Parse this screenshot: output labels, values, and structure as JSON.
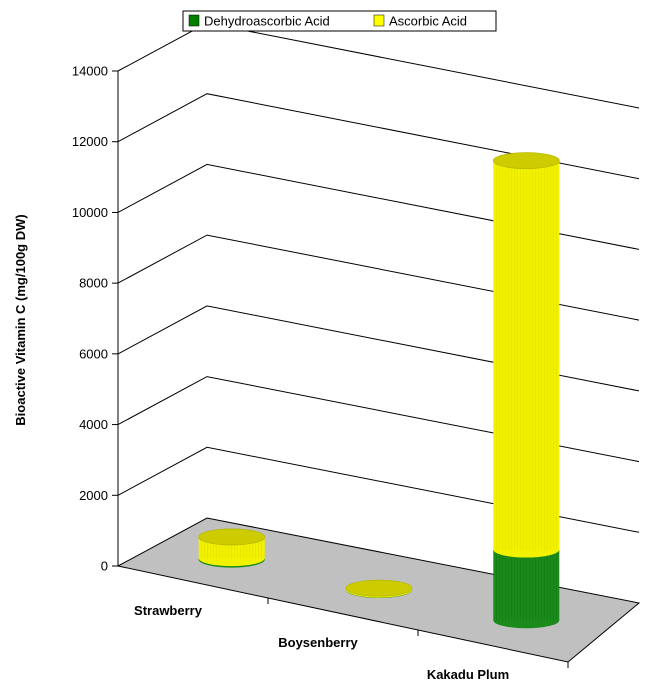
{
  "chart_data": {
    "type": "bar",
    "style": "3d-stacked-cylinder",
    "categories": [
      "Strawberry",
      "Boysenberry",
      "Kakadu Plum"
    ],
    "series": [
      {
        "name": "Dehydroascorbic Acid",
        "values": [
          40,
          10,
          2000
        ],
        "color": "#008000"
      },
      {
        "name": "Ascorbic Acid",
        "values": [
          600,
          40,
          11000
        ],
        "color": "#ffff00"
      }
    ],
    "ylabel": "Bioactive Vitamin C (mg/100g DW)",
    "xlabel": "",
    "ylim": [
      0,
      14000
    ],
    "yticks": [
      0,
      2000,
      4000,
      6000,
      8000,
      10000,
      12000,
      14000
    ],
    "grid": true,
    "legend": "top",
    "floor_color": "#c0c0c0"
  }
}
